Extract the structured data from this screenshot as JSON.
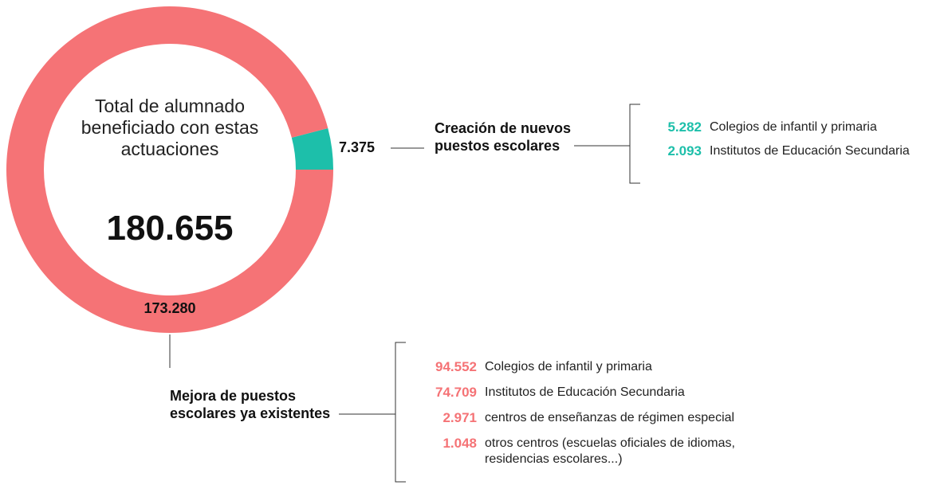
{
  "chart_data": {
    "type": "pie",
    "donut": true,
    "center_text": "Total de alumnado beneficiado con estas actuaciones",
    "total_label": "180.655",
    "categories": [
      "Creación de nuevos puestos escolares",
      "Mejora de puestos escolares ya existentes"
    ],
    "values": [
      7375,
      173280
    ],
    "value_labels": [
      "7.375",
      "173.280"
    ],
    "colors": [
      "#1dbfaa",
      "#f57376"
    ]
  },
  "details": [
    {
      "color": "#1dbfaa",
      "items": [
        {
          "value": "5.282",
          "label": "Colegios de infantil y primaria"
        },
        {
          "value": "2.093",
          "label": "Institutos de Educación Secundaria"
        }
      ]
    },
    {
      "color": "#f57376",
      "items": [
        {
          "value": "94.552",
          "label": "Colegios de infantil y primaria"
        },
        {
          "value": "74.709",
          "label": "Institutos de Educación Secundaria"
        },
        {
          "value": "2.971",
          "label": "centros de enseñanzas de régimen especial"
        },
        {
          "value": "1.048",
          "label": "otros centros (escuelas oficiales de idiomas, residencias escolares...)"
        }
      ]
    }
  ]
}
